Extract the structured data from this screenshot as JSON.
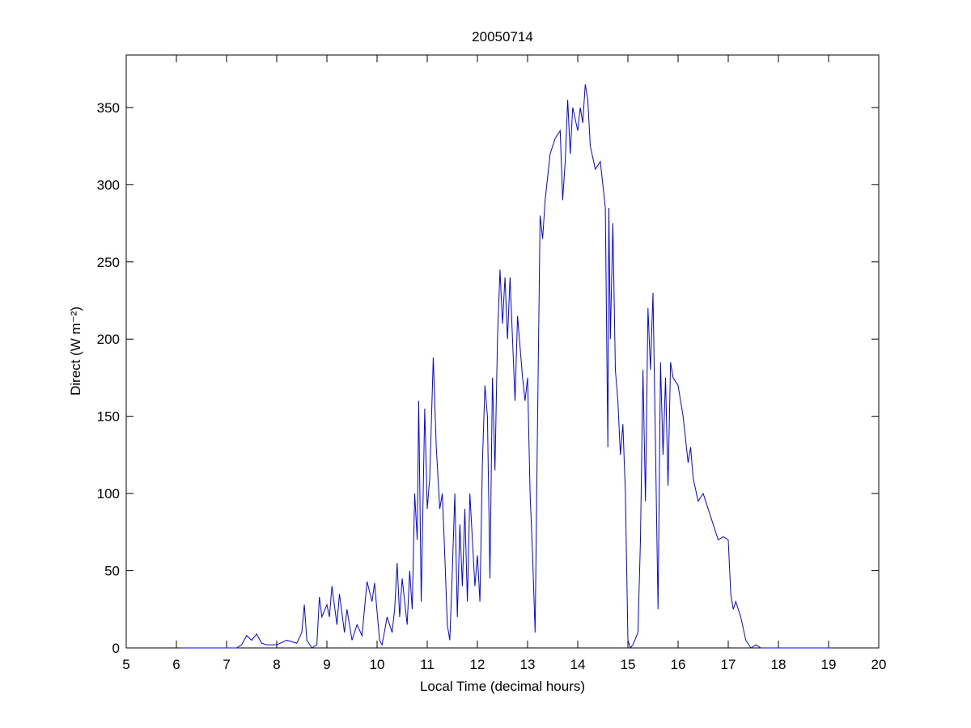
{
  "chart_data": {
    "type": "line",
    "title": "20050714",
    "xlabel": "Local Time (decimal hours)",
    "ylabel": "Direct (W m⁻²)",
    "xlim": [
      5,
      20
    ],
    "ylim": [
      0,
      384
    ],
    "xticks": [
      5,
      6,
      7,
      8,
      9,
      10,
      11,
      12,
      13,
      14,
      15,
      16,
      17,
      18,
      19,
      20
    ],
    "yticks": [
      0,
      50,
      100,
      150,
      200,
      250,
      300,
      350
    ],
    "grid": false,
    "series": [
      {
        "color": "#0000ff",
        "x": [
          6.1,
          7.2,
          7.3,
          7.4,
          7.5,
          7.6,
          7.7,
          7.8,
          8.0,
          8.2,
          8.4,
          8.5,
          8.55,
          8.6,
          8.7,
          8.8,
          8.85,
          8.9,
          9.0,
          9.05,
          9.1,
          9.2,
          9.25,
          9.35,
          9.4,
          9.5,
          9.6,
          9.7,
          9.8,
          9.9,
          9.95,
          10.05,
          10.1,
          10.2,
          10.3,
          10.35,
          10.4,
          10.45,
          10.5,
          10.6,
          10.65,
          10.7,
          10.75,
          10.8,
          10.83,
          10.88,
          10.95,
          11.0,
          11.05,
          11.12,
          11.18,
          11.25,
          11.3,
          11.35,
          11.4,
          11.45,
          11.5,
          11.55,
          11.6,
          11.65,
          11.7,
          11.75,
          11.8,
          11.85,
          11.9,
          11.95,
          12.0,
          12.05,
          12.1,
          12.15,
          12.2,
          12.25,
          12.3,
          12.35,
          12.4,
          12.45,
          12.5,
          12.55,
          12.6,
          12.65,
          12.7,
          12.75,
          12.8,
          12.9,
          12.95,
          13.0,
          13.05,
          13.1,
          13.15,
          13.2,
          13.25,
          13.3,
          13.35,
          13.45,
          13.55,
          13.65,
          13.7,
          13.75,
          13.8,
          13.85,
          13.9,
          14.0,
          14.05,
          14.1,
          14.15,
          14.2,
          14.25,
          14.35,
          14.45,
          14.55,
          14.6,
          14.62,
          14.65,
          14.7,
          14.75,
          14.8,
          14.85,
          14.9,
          14.95,
          15.0,
          15.05,
          15.1,
          15.2,
          15.25,
          15.3,
          15.35,
          15.4,
          15.45,
          15.5,
          15.55,
          15.6,
          15.65,
          15.7,
          15.75,
          15.8,
          15.85,
          15.9,
          16.0,
          16.1,
          16.2,
          16.25,
          16.3,
          16.4,
          16.5,
          16.6,
          16.7,
          16.8,
          16.9,
          17.0,
          17.05,
          17.1,
          17.15,
          17.25,
          17.35,
          17.45,
          17.55,
          17.65,
          19.05
        ],
        "values": [
          0,
          0,
          2,
          8,
          5,
          9,
          3,
          2,
          2,
          5,
          3,
          10,
          28,
          5,
          0,
          2,
          33,
          20,
          28,
          20,
          40,
          15,
          35,
          10,
          25,
          5,
          15,
          8,
          43,
          30,
          42,
          5,
          2,
          20,
          10,
          25,
          55,
          20,
          45,
          15,
          50,
          25,
          100,
          70,
          160,
          30,
          155,
          90,
          110,
          188,
          130,
          90,
          100,
          60,
          15,
          5,
          50,
          100,
          20,
          80,
          40,
          90,
          30,
          100,
          70,
          40,
          60,
          30,
          120,
          170,
          150,
          45,
          175,
          115,
          200,
          245,
          210,
          240,
          200,
          240,
          200,
          160,
          215,
          175,
          160,
          175,
          100,
          60,
          10,
          150,
          280,
          265,
          290,
          320,
          330,
          335,
          290,
          315,
          355,
          320,
          350,
          335,
          350,
          340,
          365,
          355,
          325,
          310,
          315,
          285,
          130,
          285,
          200,
          275,
          180,
          160,
          125,
          145,
          100,
          5,
          0,
          2,
          10,
          70,
          180,
          95,
          220,
          180,
          230,
          130,
          25,
          185,
          125,
          175,
          105,
          185,
          175,
          170,
          150,
          120,
          130,
          110,
          95,
          100,
          90,
          80,
          70,
          72,
          70,
          35,
          25,
          30,
          20,
          5,
          0,
          2,
          0,
          0
        ]
      }
    ]
  }
}
